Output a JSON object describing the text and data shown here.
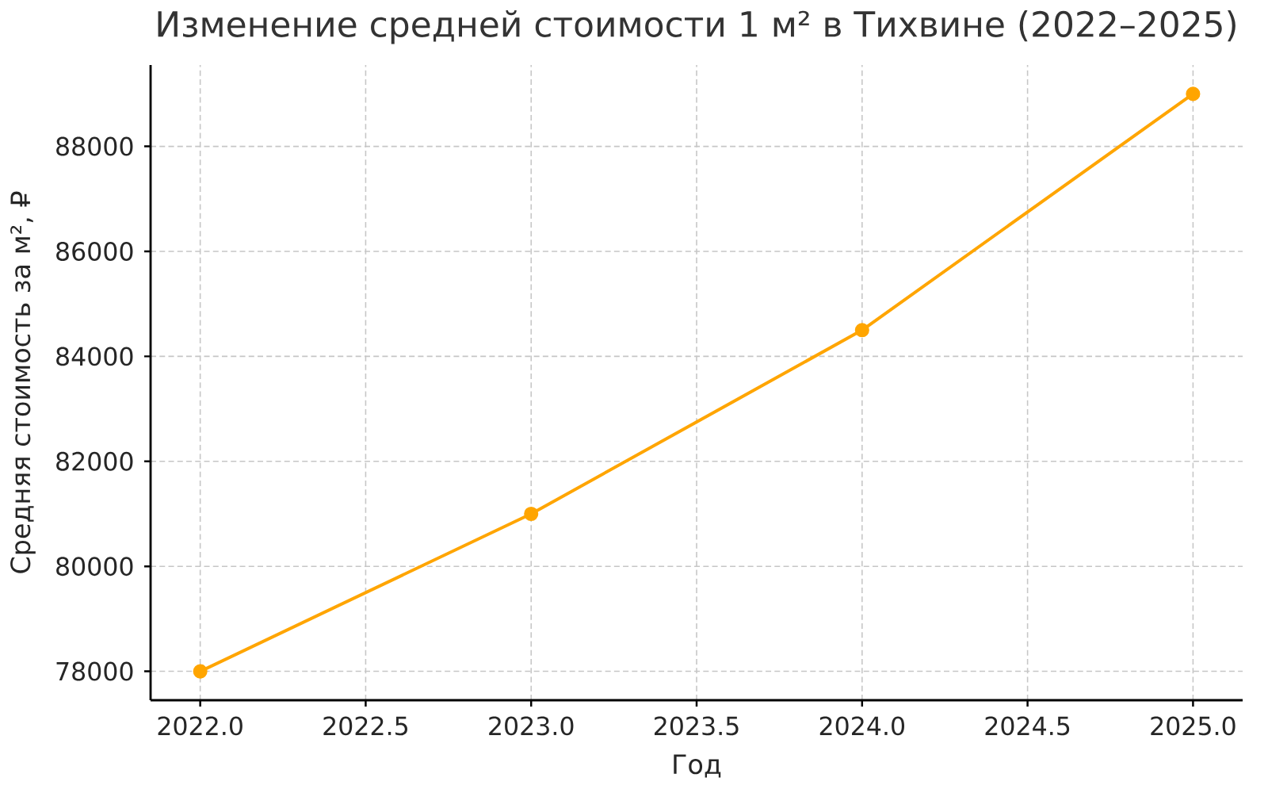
{
  "chart_data": {
    "type": "line",
    "title": "Изменение средней стоимости 1 м² в Тихвине (2022–2025)",
    "xlabel": "Год",
    "ylabel": "Средняя стоимость за м², ₽",
    "x": [
      2022,
      2023,
      2024,
      2025
    ],
    "series": [
      {
        "color": "#ffa500",
        "values": [
          78000,
          81000,
          84500,
          89000
        ]
      }
    ],
    "xlim": [
      2021.85,
      2025.15
    ],
    "ylim": [
      77450,
      89550
    ],
    "xticks": [
      {
        "value": 2022,
        "label": "2022.0"
      },
      {
        "value": 2022.5,
        "label": "2022.5"
      },
      {
        "value": 2023,
        "label": "2023.0"
      },
      {
        "value": 2023.5,
        "label": "2023.5"
      },
      {
        "value": 2024,
        "label": "2024.0"
      },
      {
        "value": 2024.5,
        "label": "2024.5"
      },
      {
        "value": 2025,
        "label": "2025.0"
      }
    ],
    "yticks": [
      78000,
      80000,
      82000,
      84000,
      86000,
      88000
    ],
    "grid": true,
    "marker": "circle",
    "line_style": "solid"
  }
}
